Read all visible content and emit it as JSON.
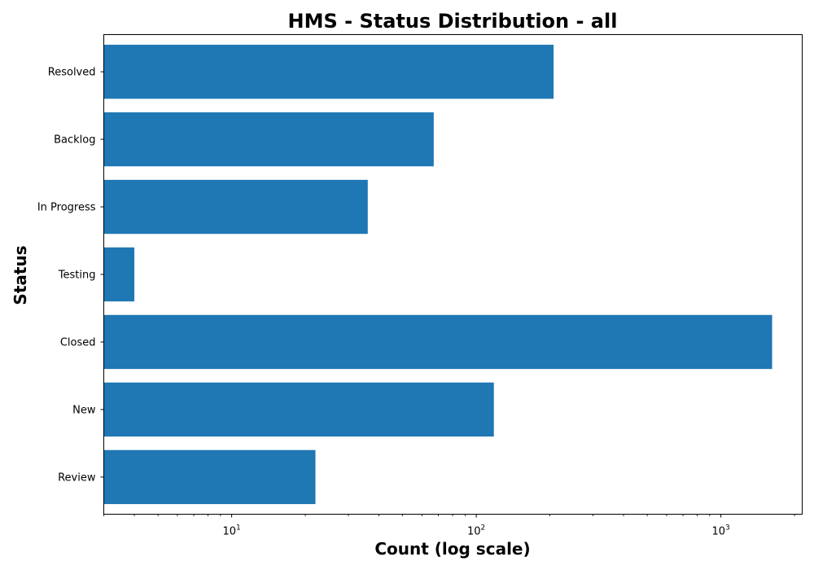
{
  "chart_data": {
    "type": "bar",
    "orientation": "horizontal",
    "title": "HMS - Status Distribution - all",
    "xlabel": "Count (log scale)",
    "ylabel": "Status",
    "x_scale": "log",
    "xlim": [
      3,
      2150
    ],
    "x_tick_labels": [
      {
        "base": "10",
        "exp": "1",
        "value": 10
      },
      {
        "base": "10",
        "exp": "2",
        "value": 100
      },
      {
        "base": "10",
        "exp": "3",
        "value": 1000
      }
    ],
    "categories": [
      "Review",
      "New",
      "Closed",
      "Testing",
      "In Progress",
      "Backlog",
      "Resolved"
    ],
    "values": [
      22,
      118,
      1620,
      4,
      36,
      67,
      207
    ],
    "bar_color": "#1f77b4",
    "grid": false,
    "legend": "none"
  }
}
